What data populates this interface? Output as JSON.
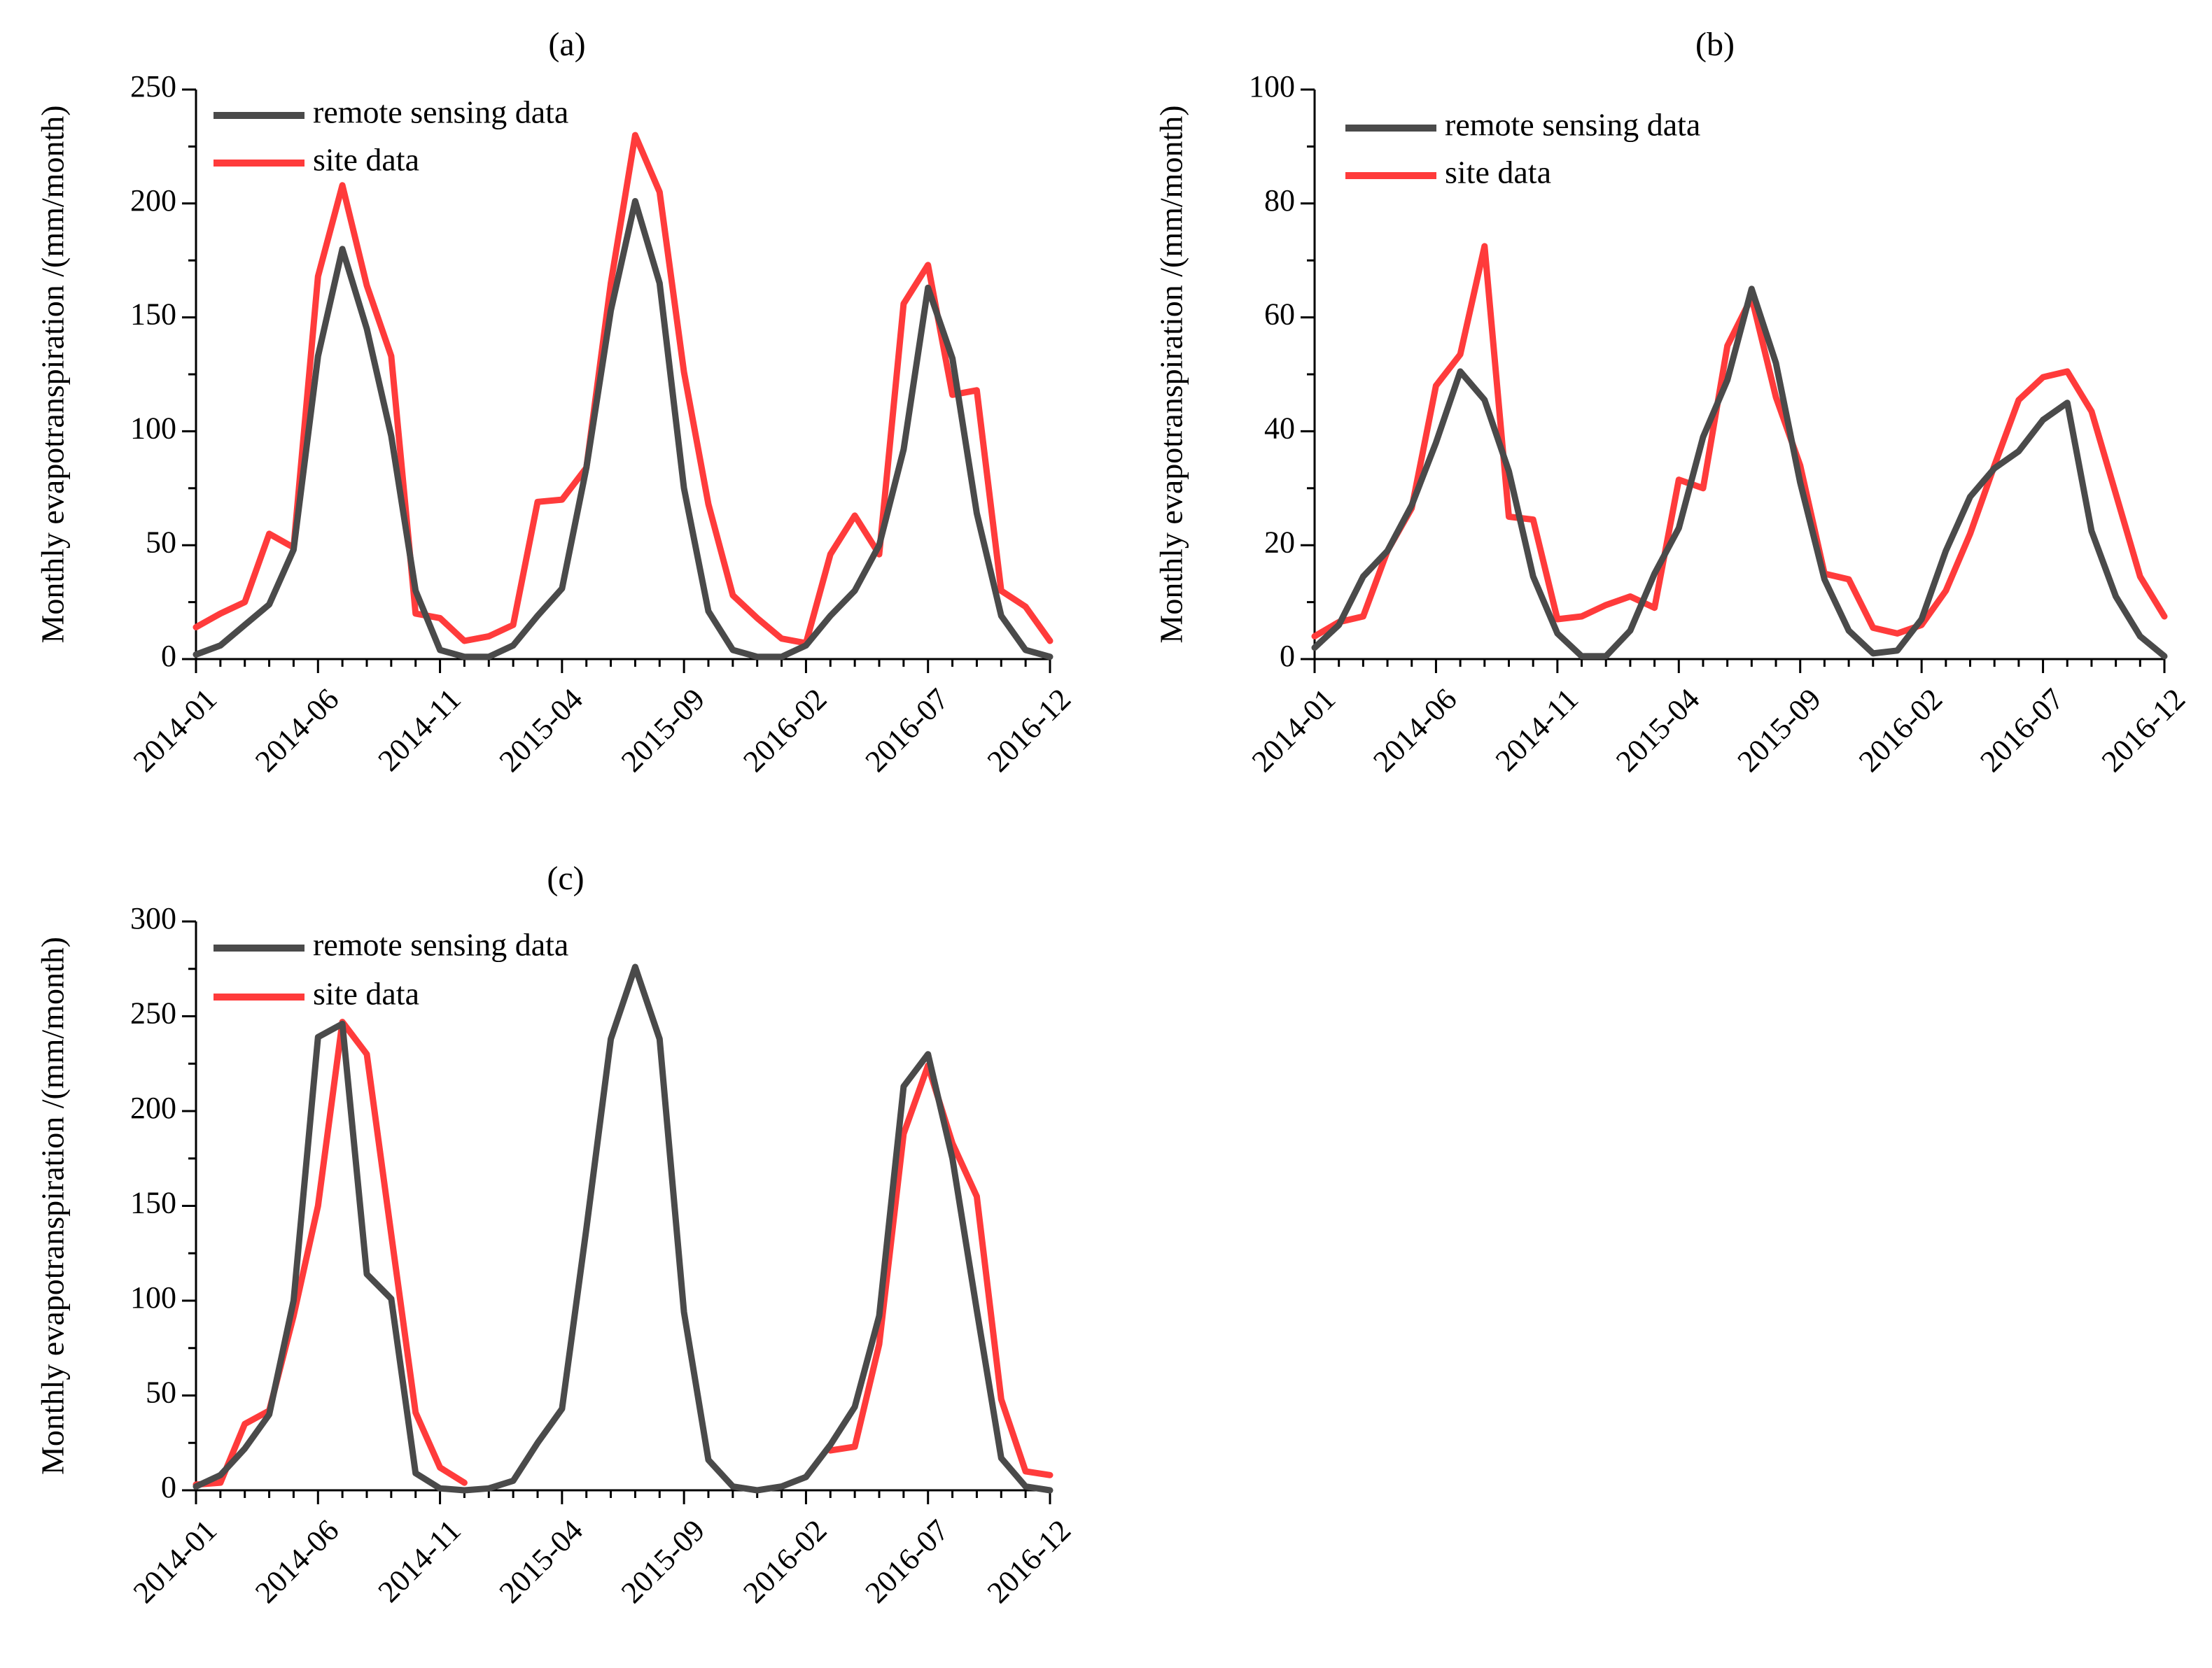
{
  "colors": {
    "remote": "#4a4a4a",
    "site": "#ff3b3b"
  },
  "chart_data": [
    {
      "panel_label": "(a)",
      "type": "line",
      "ylabel": "Monthly evapotranspiration /(mm/month)",
      "xlabel": "",
      "ylim": [
        0,
        250
      ],
      "yticks": [
        "0",
        "50",
        "100",
        "150",
        "200",
        "250"
      ],
      "xticks": [
        "2014-01",
        "2014-06",
        "2014-11",
        "2015-04",
        "2015-09",
        "2016-02",
        "2016-07",
        "2016-12"
      ],
      "grid": false,
      "legend": "top-left",
      "x_start": "2014-01",
      "series": [
        {
          "name": "remote sensing data",
          "color": "remote",
          "values": [
            2,
            6,
            15,
            24,
            48,
            133,
            180,
            145,
            98,
            30,
            4,
            1,
            1,
            6,
            19,
            31,
            84,
            153,
            201,
            165,
            75,
            21,
            4,
            1,
            1,
            6,
            19,
            30,
            50,
            92,
            163,
            132,
            64,
            19,
            4,
            1
          ]
        },
        {
          "name": "site data",
          "color": "site",
          "values": [
            14,
            20,
            25,
            55,
            49,
            168,
            208,
            164,
            133,
            20,
            18,
            8,
            10,
            15,
            69,
            70,
            84,
            165,
            230,
            205,
            126,
            68,
            28,
            18,
            9,
            7,
            46,
            63,
            46,
            156,
            173,
            116,
            118,
            30,
            23,
            8
          ]
        }
      ]
    },
    {
      "panel_label": "(b)",
      "type": "line",
      "ylabel": "Monthly evapotranspiration /(mm/month)",
      "xlabel": "",
      "ylim": [
        0,
        100
      ],
      "yticks": [
        "0",
        "20",
        "40",
        "60",
        "80",
        "100"
      ],
      "xticks": [
        "2014-01",
        "2014-06",
        "2014-11",
        "2015-04",
        "2015-09",
        "2016-02",
        "2016-07",
        "2016-12"
      ],
      "grid": false,
      "legend": "top-left",
      "x_start": "2014-01",
      "series": [
        {
          "name": "remote sensing data",
          "color": "remote",
          "values": [
            2,
            6,
            14.5,
            19,
            27,
            38,
            50.5,
            45.5,
            33,
            14.5,
            4.5,
            0.5,
            0.5,
            5,
            15,
            23,
            39,
            49,
            65,
            52,
            31,
            14,
            5,
            1,
            1.5,
            7,
            19,
            28.5,
            33.5,
            36.5,
            42,
            45,
            22.5,
            11,
            4,
            0.5
          ]
        },
        {
          "name": "site data",
          "color": "site",
          "values": [
            4,
            6.5,
            7.5,
            19,
            26.5,
            48,
            53.5,
            72.5,
            25,
            24.5,
            7,
            7.5,
            9.5,
            11,
            9,
            31.5,
            30,
            55,
            63.5,
            46,
            34,
            15,
            14,
            5.5,
            4.5,
            6,
            12,
            22,
            34,
            45.5,
            49.5,
            50.5,
            43.5,
            29,
            14.5,
            7.5
          ]
        }
      ]
    },
    {
      "panel_label": "(c)",
      "type": "line",
      "ylabel": "Monthly evapotranspiration /(mm/month)",
      "xlabel": "",
      "ylim": [
        0,
        300
      ],
      "yticks": [
        "0",
        "50",
        "100",
        "150",
        "200",
        "250",
        "300"
      ],
      "xticks": [
        "2014-01",
        "2014-06",
        "2014-11",
        "2015-04",
        "2015-09",
        "2016-02",
        "2016-07",
        "2016-12"
      ],
      "grid": false,
      "legend": "top-left",
      "x_start": "2014-01",
      "series": [
        {
          "name": "remote sensing data",
          "color": "remote",
          "values": [
            2,
            8,
            22,
            40,
            100,
            239,
            246,
            114,
            101,
            9,
            1,
            0,
            1,
            5,
            25,
            43,
            138,
            238,
            276,
            238,
            94,
            16,
            2,
            0,
            2,
            7,
            24,
            44,
            92,
            213,
            230,
            175,
            95,
            17,
            2,
            0
          ]
        },
        {
          "name": "site data",
          "color": "site",
          "values": [
            3,
            4,
            35,
            42,
            92,
            150,
            247,
            230,
            135,
            41,
            12,
            4,
            null,
            null,
            null,
            null,
            null,
            null,
            null,
            null,
            null,
            null,
            null,
            null,
            null,
            null,
            21,
            23,
            77,
            188,
            224,
            183,
            155,
            48,
            10,
            8
          ]
        }
      ]
    }
  ]
}
